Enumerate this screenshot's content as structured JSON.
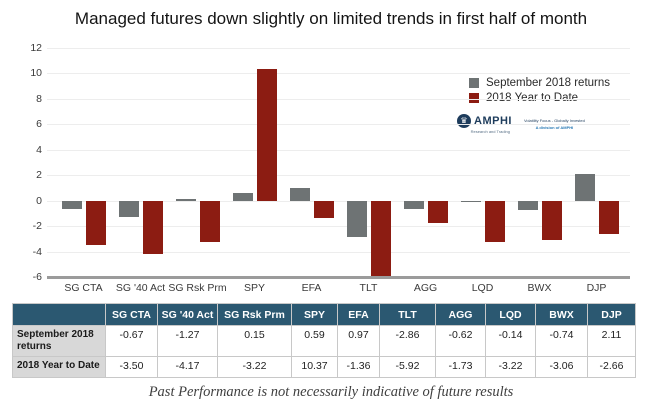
{
  "title": "Managed futures down slightly on limited trends in first half of month",
  "footer": "Past Performance is not necessarily indicative of future results",
  "brand": {
    "name": "AMPHI",
    "sub": "Research and Trading",
    "tagline": "Volatility Focus  -  Globally Invested",
    "division": "A division of AMPHI"
  },
  "colors": {
    "series_september": "#6e7374",
    "series_ytd": "#8c1c12",
    "table_header_bg": "#2b5871",
    "table_label_bg": "#d8d8d8",
    "gridline": "#ededed",
    "axis_line": "#9b9b9b"
  },
  "chart_data": {
    "type": "bar",
    "title": "Managed futures down slightly on limited trends in first half of month",
    "categories": [
      "SG CTA",
      "SG '40 Act",
      "SG Rsk Prm",
      "SPY",
      "EFA",
      "TLT",
      "AGG",
      "LQD",
      "BWX",
      "DJP"
    ],
    "series": [
      {
        "name": "September 2018 returns",
        "color": "#6e7374",
        "values": [
          -0.67,
          -1.27,
          0.15,
          0.59,
          0.97,
          -2.86,
          -0.62,
          -0.14,
          -0.74,
          2.11
        ]
      },
      {
        "name": "2018 Year to Date",
        "color": "#8c1c12",
        "values": [
          -3.5,
          -4.17,
          -3.22,
          10.37,
          -1.36,
          -5.92,
          -1.73,
          -3.22,
          -3.06,
          -2.66
        ]
      }
    ],
    "xlabel": "",
    "ylabel": "",
    "ylim": [
      -6,
      12
    ],
    "yticks": [
      12,
      10,
      8,
      6,
      4,
      2,
      0,
      -2,
      -4,
      -6
    ],
    "grid": true,
    "legend_position": "upper right"
  },
  "table": {
    "corner": "",
    "columns": [
      "SG CTA",
      "SG '40 Act",
      "SG  Rsk Prm",
      "SPY",
      "EFA",
      "TLT",
      "AGG",
      "LQD",
      "BWX",
      "DJP"
    ],
    "rows": [
      {
        "label": "September 2018 returns",
        "values": [
          "-0.67",
          "-1.27",
          "0.15",
          "0.59",
          "0.97",
          "-2.86",
          "-0.62",
          "-0.14",
          "-0.74",
          "2.11"
        ]
      },
      {
        "label": "2018 Year to Date",
        "values": [
          "-3.50",
          "-4.17",
          "-3.22",
          "10.37",
          "-1.36",
          "-5.92",
          "-1.73",
          "-3.22",
          "-3.06",
          "-2.66"
        ]
      }
    ]
  }
}
